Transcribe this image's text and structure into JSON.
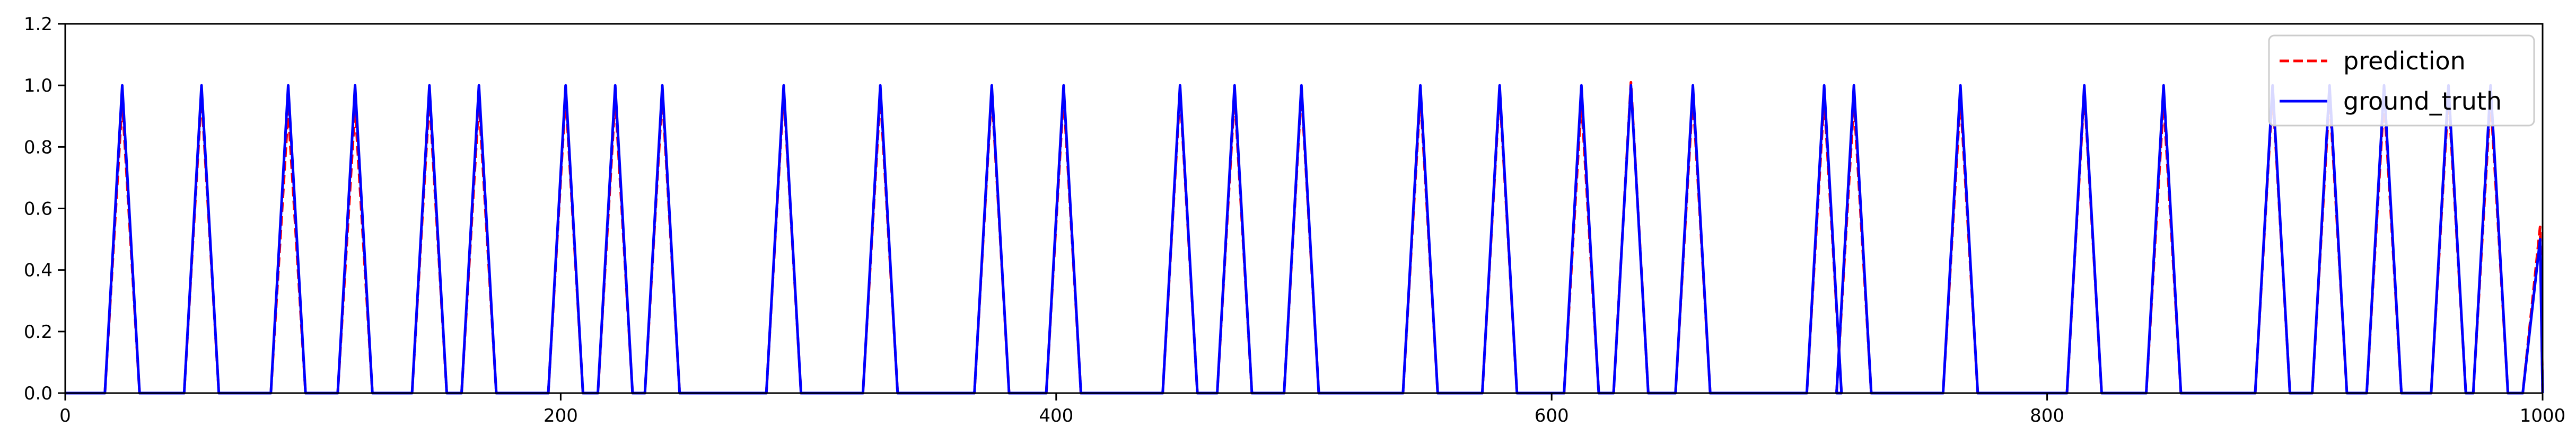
{
  "chart_data": {
    "type": "line",
    "title": "",
    "xlabel": "",
    "ylabel": "",
    "xlim": [
      0,
      1000
    ],
    "ylim": [
      0,
      1.2
    ],
    "xticks": [
      0,
      200,
      400,
      600,
      800,
      1000
    ],
    "yticks": [
      0.0,
      0.2,
      0.4,
      0.6,
      0.8,
      1.0,
      1.2
    ],
    "xtick_labels": [
      "0",
      "200",
      "400",
      "600",
      "800",
      "1000"
    ],
    "ytick_labels": [
      "0.0",
      "0.2",
      "0.4",
      "0.6",
      "0.8",
      "1.0",
      "1.2"
    ],
    "grid": false,
    "legend_position": "top-right",
    "pulse_rise_half_width": 7,
    "series": [
      {
        "name": "prediction",
        "style": "dashed",
        "color": "#ff0000",
        "peaks": [
          {
            "x": 23,
            "y": 0.95
          },
          {
            "x": 55,
            "y": 0.97
          },
          {
            "x": 90,
            "y": 0.92
          },
          {
            "x": 117,
            "y": 0.93
          },
          {
            "x": 147,
            "y": 0.96
          },
          {
            "x": 167,
            "y": 0.95
          },
          {
            "x": 202,
            "y": 0.97
          },
          {
            "x": 222,
            "y": 0.96
          },
          {
            "x": 241,
            "y": 0.97
          },
          {
            "x": 290,
            "y": 0.98
          },
          {
            "x": 329,
            "y": 0.97
          },
          {
            "x": 374,
            "y": 0.98
          },
          {
            "x": 403,
            "y": 0.97
          },
          {
            "x": 450,
            "y": 0.98
          },
          {
            "x": 472,
            "y": 0.97
          },
          {
            "x": 499,
            "y": 0.98
          },
          {
            "x": 547,
            "y": 0.97
          },
          {
            "x": 579,
            "y": 0.98
          },
          {
            "x": 612,
            "y": 0.95
          },
          {
            "x": 632,
            "y": 1.01
          },
          {
            "x": 657,
            "y": 0.97
          },
          {
            "x": 710,
            "y": 0.96
          },
          {
            "x": 722,
            "y": 0.95
          },
          {
            "x": 765,
            "y": 0.96
          },
          {
            "x": 815,
            "y": 0.98
          },
          {
            "x": 847,
            "y": 0.95
          },
          {
            "x": 891,
            "y": 0.98
          },
          {
            "x": 914,
            "y": 0.97
          },
          {
            "x": 936,
            "y": 0.96
          },
          {
            "x": 962,
            "y": 0.97
          },
          {
            "x": 979,
            "y": 0.96
          },
          {
            "x": 999,
            "y": 0.54
          }
        ]
      },
      {
        "name": "ground_truth",
        "style": "solid",
        "color": "#0000ff",
        "peaks": [
          {
            "x": 23,
            "y": 1.0
          },
          {
            "x": 55,
            "y": 1.0
          },
          {
            "x": 90,
            "y": 1.0
          },
          {
            "x": 117,
            "y": 1.0
          },
          {
            "x": 147,
            "y": 1.0
          },
          {
            "x": 167,
            "y": 1.0
          },
          {
            "x": 202,
            "y": 1.0
          },
          {
            "x": 222,
            "y": 1.0
          },
          {
            "x": 241,
            "y": 1.0
          },
          {
            "x": 290,
            "y": 1.0
          },
          {
            "x": 329,
            "y": 1.0
          },
          {
            "x": 374,
            "y": 1.0
          },
          {
            "x": 403,
            "y": 1.0
          },
          {
            "x": 450,
            "y": 1.0
          },
          {
            "x": 472,
            "y": 1.0
          },
          {
            "x": 499,
            "y": 1.0
          },
          {
            "x": 547,
            "y": 1.0
          },
          {
            "x": 579,
            "y": 1.0
          },
          {
            "x": 612,
            "y": 1.0
          },
          {
            "x": 632,
            "y": 1.0
          },
          {
            "x": 657,
            "y": 1.0
          },
          {
            "x": 710,
            "y": 1.0
          },
          {
            "x": 722,
            "y": 1.0
          },
          {
            "x": 765,
            "y": 1.0
          },
          {
            "x": 815,
            "y": 1.0
          },
          {
            "x": 847,
            "y": 1.0
          },
          {
            "x": 891,
            "y": 1.0
          },
          {
            "x": 914,
            "y": 1.0
          },
          {
            "x": 936,
            "y": 1.0
          },
          {
            "x": 962,
            "y": 1.0
          },
          {
            "x": 979,
            "y": 1.0
          },
          {
            "x": 999,
            "y": 0.5
          }
        ]
      }
    ]
  }
}
